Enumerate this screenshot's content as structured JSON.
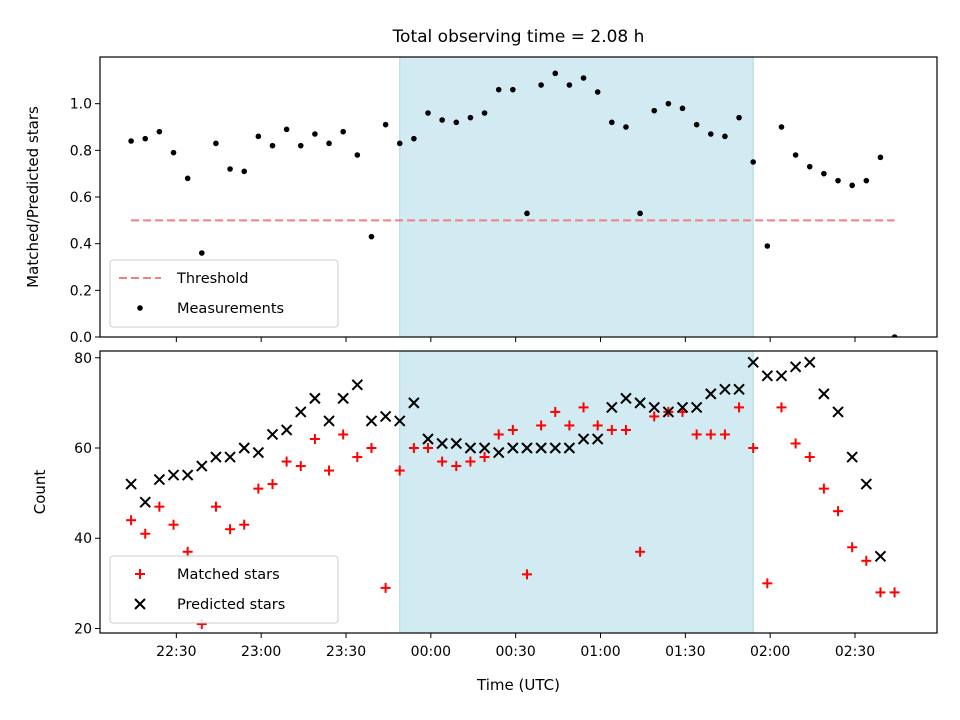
{
  "title": "Total observing time = 2.08 h",
  "xlabel": "Time (UTC)",
  "x_ticks": [
    "22:30",
    "23:00",
    "23:30",
    "00:00",
    "00:30",
    "01:00",
    "01:30",
    "02:00",
    "02:30"
  ],
  "colors": {
    "threshold": "#f08080",
    "measurements": "#000000",
    "matched": "#ff0000",
    "predicted": "#000000",
    "band": "#add8e6"
  },
  "chart_data": [
    {
      "type": "scatter",
      "panel": "top",
      "ylabel": "Matched/Predicted stars",
      "ylim": [
        0,
        1.2
      ],
      "y_ticks": [
        "0.0",
        "0.2",
        "0.4",
        "0.6",
        "0.8",
        "1.0"
      ],
      "xlim": [
        "22:03",
        "02:59"
      ],
      "observing_window": [
        "23:49",
        "01:54"
      ],
      "grid": false,
      "legend_position": "lower-left",
      "threshold": {
        "name": "Threshold",
        "value": 0.5,
        "x_range": [
          "22:14",
          "02:44"
        ]
      },
      "series": [
        {
          "name": "Measurements",
          "x": [
            "22:14",
            "22:19",
            "22:24",
            "22:29",
            "22:34",
            "22:39",
            "22:44",
            "22:49",
            "22:54",
            "22:59",
            "23:04",
            "23:09",
            "23:14",
            "23:19",
            "23:24",
            "23:29",
            "23:34",
            "23:39",
            "23:44",
            "23:49",
            "23:54",
            "23:59",
            "00:04",
            "00:09",
            "00:14",
            "00:19",
            "00:24",
            "00:29",
            "00:34",
            "00:39",
            "00:44",
            "00:49",
            "00:54",
            "00:59",
            "01:04",
            "01:09",
            "01:14",
            "01:19",
            "01:24",
            "01:29",
            "01:34",
            "01:39",
            "01:44",
            "01:49",
            "01:54",
            "01:59",
            "02:04",
            "02:09",
            "02:14",
            "02:19",
            "02:24",
            "02:29",
            "02:34",
            "02:39",
            "02:44"
          ],
          "y": [
            0.84,
            0.85,
            0.88,
            0.79,
            0.68,
            0.36,
            0.83,
            0.72,
            0.71,
            0.86,
            0.82,
            0.89,
            0.82,
            0.87,
            0.83,
            0.88,
            0.78,
            0.43,
            0.91,
            0.83,
            0.85,
            0.96,
            0.93,
            0.92,
            0.94,
            0.96,
            1.06,
            1.06,
            0.53,
            1.08,
            1.13,
            1.08,
            1.11,
            1.05,
            0.92,
            0.9,
            0.53,
            0.97,
            1.0,
            0.98,
            0.91,
            0.87,
            0.86,
            0.94,
            0.75,
            0.39,
            0.9,
            0.78,
            0.73,
            0.7,
            0.67,
            0.65,
            0.67,
            0.77,
            0.0
          ]
        }
      ]
    },
    {
      "type": "scatter",
      "panel": "bottom",
      "ylabel": "Count",
      "ylim": [
        19,
        81.5
      ],
      "y_ticks": [
        "20",
        "40",
        "60",
        "80"
      ],
      "xlim": [
        "22:03",
        "02:59"
      ],
      "observing_window": [
        "23:49",
        "01:54"
      ],
      "grid": false,
      "legend_position": "lower-left",
      "series": [
        {
          "name": "Matched stars",
          "marker": "plus",
          "x": [
            "22:14",
            "22:19",
            "22:24",
            "22:29",
            "22:34",
            "22:39",
            "22:44",
            "22:49",
            "22:54",
            "22:59",
            "23:04",
            "23:09",
            "23:14",
            "23:19",
            "23:24",
            "23:29",
            "23:34",
            "23:39",
            "23:44",
            "23:49",
            "23:54",
            "23:59",
            "00:04",
            "00:09",
            "00:14",
            "00:19",
            "00:24",
            "00:29",
            "00:34",
            "00:39",
            "00:44",
            "00:49",
            "00:54",
            "00:59",
            "01:04",
            "01:09",
            "01:14",
            "01:19",
            "01:24",
            "01:29",
            "01:34",
            "01:39",
            "01:44",
            "01:49",
            "01:54",
            "01:59",
            "02:04",
            "02:09",
            "02:14",
            "02:19",
            "02:24",
            "02:29",
            "02:34",
            "02:39",
            "02:44"
          ],
          "y": [
            44,
            41,
            47,
            43,
            37,
            21,
            47,
            42,
            43,
            51,
            52,
            57,
            56,
            62,
            55,
            63,
            58,
            60,
            29,
            55,
            60,
            60,
            57,
            56,
            57,
            58,
            63,
            64,
            32,
            65,
            68,
            65,
            69,
            65,
            64,
            64,
            37,
            67,
            68,
            68,
            63,
            63,
            63,
            69,
            60,
            30,
            69,
            61,
            58,
            51,
            46,
            38,
            35,
            28,
            28
          ]
        },
        {
          "name": "Predicted stars",
          "marker": "x",
          "x": [
            "22:14",
            "22:19",
            "22:24",
            "22:29",
            "22:34",
            "22:39",
            "22:44",
            "22:49",
            "22:54",
            "22:59",
            "23:04",
            "23:09",
            "23:14",
            "23:19",
            "23:24",
            "23:29",
            "23:34",
            "23:39",
            "23:44",
            "23:49",
            "23:54",
            "23:59",
            "00:04",
            "00:09",
            "00:14",
            "00:19",
            "00:24",
            "00:29",
            "00:34",
            "00:39",
            "00:44",
            "00:49",
            "00:54",
            "00:59",
            "01:04",
            "01:09",
            "01:14",
            "01:19",
            "01:24",
            "01:29",
            "01:34",
            "01:39",
            "01:44",
            "01:49",
            "01:54",
            "01:59",
            "02:04",
            "02:09",
            "02:14",
            "02:19",
            "02:24",
            "02:29",
            "02:34",
            "02:39"
          ],
          "y": [
            52,
            48,
            53,
            54,
            54,
            56,
            58,
            58,
            60,
            59,
            63,
            64,
            68,
            71,
            66,
            71,
            74,
            66,
            67,
            66,
            70,
            62,
            61,
            61,
            60,
            60,
            59,
            60,
            60,
            60,
            60,
            60,
            62,
            62,
            69,
            71,
            70,
            69,
            68,
            69,
            69,
            72,
            73,
            73,
            79,
            76,
            76,
            78,
            79,
            72,
            68,
            58,
            52,
            36
          ]
        }
      ]
    }
  ]
}
